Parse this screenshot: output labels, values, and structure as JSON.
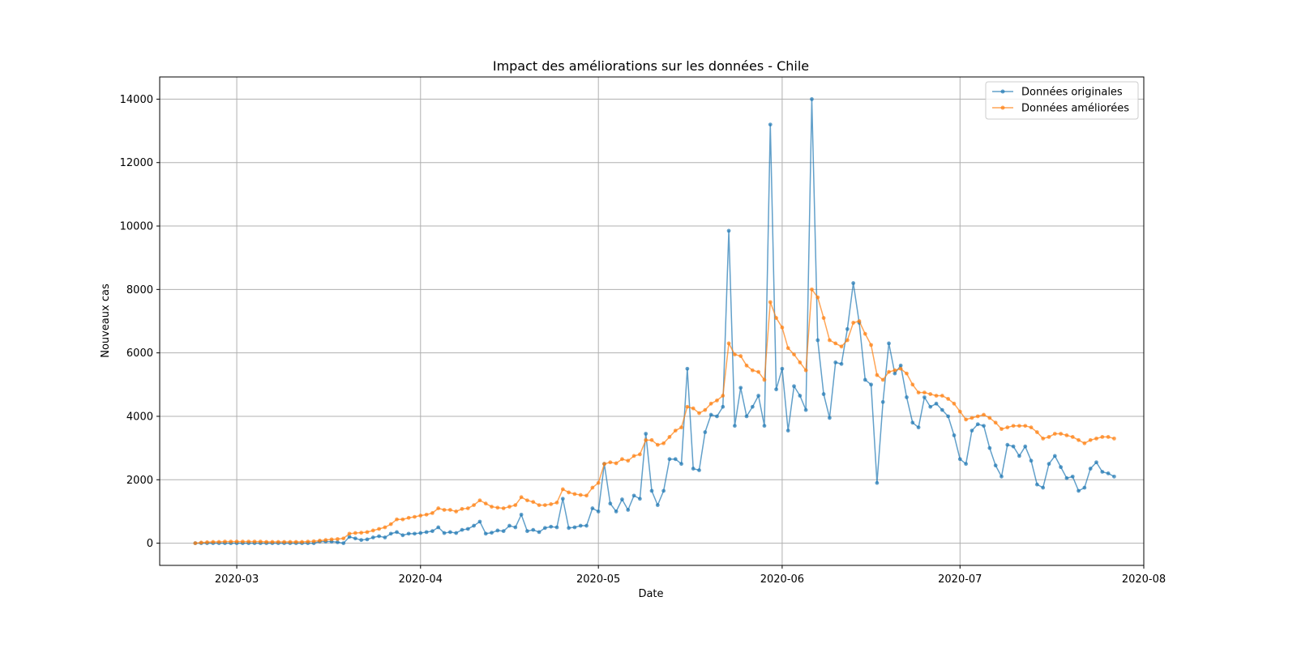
{
  "chart_data": {
    "type": "line",
    "title": "Impact des améliorations sur les données - Chile",
    "xlabel": "Date",
    "ylabel": "Nouveaux cas",
    "x_start": "2020-02-23",
    "x_ticks": [
      "2020-03",
      "2020-04",
      "2020-05",
      "2020-06",
      "2020-07",
      "2020-08"
    ],
    "y_ticks": [
      0,
      2000,
      4000,
      6000,
      8000,
      10000,
      12000,
      14000
    ],
    "xlim": [
      "2020-02-17",
      "2020-08-01"
    ],
    "ylim": [
      -700,
      14700
    ],
    "grid": true,
    "legend_position": "top-right",
    "series": [
      {
        "name": "Données originales",
        "color": "#1f77b4",
        "values": [
          0,
          0,
          0,
          0,
          0,
          0,
          0,
          0,
          0,
          0,
          0,
          0,
          0,
          0,
          0,
          0,
          0,
          0,
          0,
          0,
          0,
          50,
          50,
          50,
          30,
          0,
          200,
          150,
          100,
          120,
          180,
          220,
          180,
          300,
          350,
          250,
          300,
          300,
          320,
          350,
          380,
          500,
          320,
          350,
          320,
          420,
          450,
          550,
          680,
          300,
          330,
          400,
          380,
          550,
          500,
          900,
          380,
          420,
          350,
          480,
          520,
          500,
          1400,
          480,
          500,
          550,
          550,
          1100,
          1000,
          2500,
          1250,
          1000,
          1380,
          1050,
          1500,
          1400,
          3450,
          1650,
          1200,
          1650,
          2650,
          2650,
          2500,
          5500,
          2350,
          2300,
          3500,
          4050,
          4000,
          4300,
          9850,
          3700,
          4900,
          4000,
          4300,
          4650,
          3700,
          13200,
          4850,
          5500,
          3550,
          4950,
          4650,
          4200,
          14000,
          6400,
          4700,
          3950,
          5700,
          5650,
          6750,
          8200,
          6950,
          5150,
          5000,
          1900,
          4450,
          6300,
          5350,
          5600,
          4600,
          3800,
          3650,
          4600,
          4300,
          4400,
          4200,
          4000,
          3400,
          2650,
          2500,
          3550,
          3750,
          3700,
          3000,
          2450,
          2100,
          3100,
          3050,
          2750,
          3050,
          2600,
          1850,
          1750,
          2500,
          2750,
          2400,
          2050,
          2100,
          1650,
          1750,
          2350,
          2550,
          2250,
          2200,
          2100
        ]
      },
      {
        "name": "Données améliorées",
        "color": "#ff7f0e",
        "values": [
          0,
          20,
          30,
          40,
          40,
          50,
          50,
          50,
          50,
          50,
          50,
          50,
          40,
          40,
          40,
          40,
          40,
          40,
          40,
          50,
          60,
          80,
          100,
          120,
          130,
          150,
          300,
          320,
          330,
          350,
          400,
          450,
          500,
          600,
          750,
          750,
          800,
          830,
          870,
          900,
          950,
          1100,
          1050,
          1050,
          1000,
          1080,
          1100,
          1200,
          1350,
          1250,
          1150,
          1120,
          1100,
          1150,
          1200,
          1450,
          1350,
          1300,
          1200,
          1200,
          1230,
          1280,
          1700,
          1600,
          1550,
          1520,
          1500,
          1750,
          1900,
          2500,
          2550,
          2520,
          2650,
          2600,
          2750,
          2800,
          3250,
          3250,
          3100,
          3150,
          3350,
          3550,
          3650,
          4300,
          4250,
          4100,
          4200,
          4400,
          4500,
          4650,
          6300,
          5950,
          5900,
          5600,
          5450,
          5400,
          5150,
          7600,
          7100,
          6800,
          6150,
          5950,
          5700,
          5450,
          8000,
          7750,
          7100,
          6400,
          6300,
          6200,
          6400,
          6950,
          7000,
          6600,
          6250,
          5300,
          5150,
          5400,
          5450,
          5500,
          5350,
          5000,
          4750,
          4750,
          4700,
          4650,
          4650,
          4550,
          4400,
          4150,
          3900,
          3950,
          4000,
          4050,
          3950,
          3800,
          3600,
          3650,
          3700,
          3700,
          3700,
          3650,
          3500,
          3300,
          3350,
          3450,
          3450,
          3400,
          3350,
          3250,
          3150,
          3250,
          3300,
          3350,
          3350,
          3300
        ]
      }
    ]
  }
}
